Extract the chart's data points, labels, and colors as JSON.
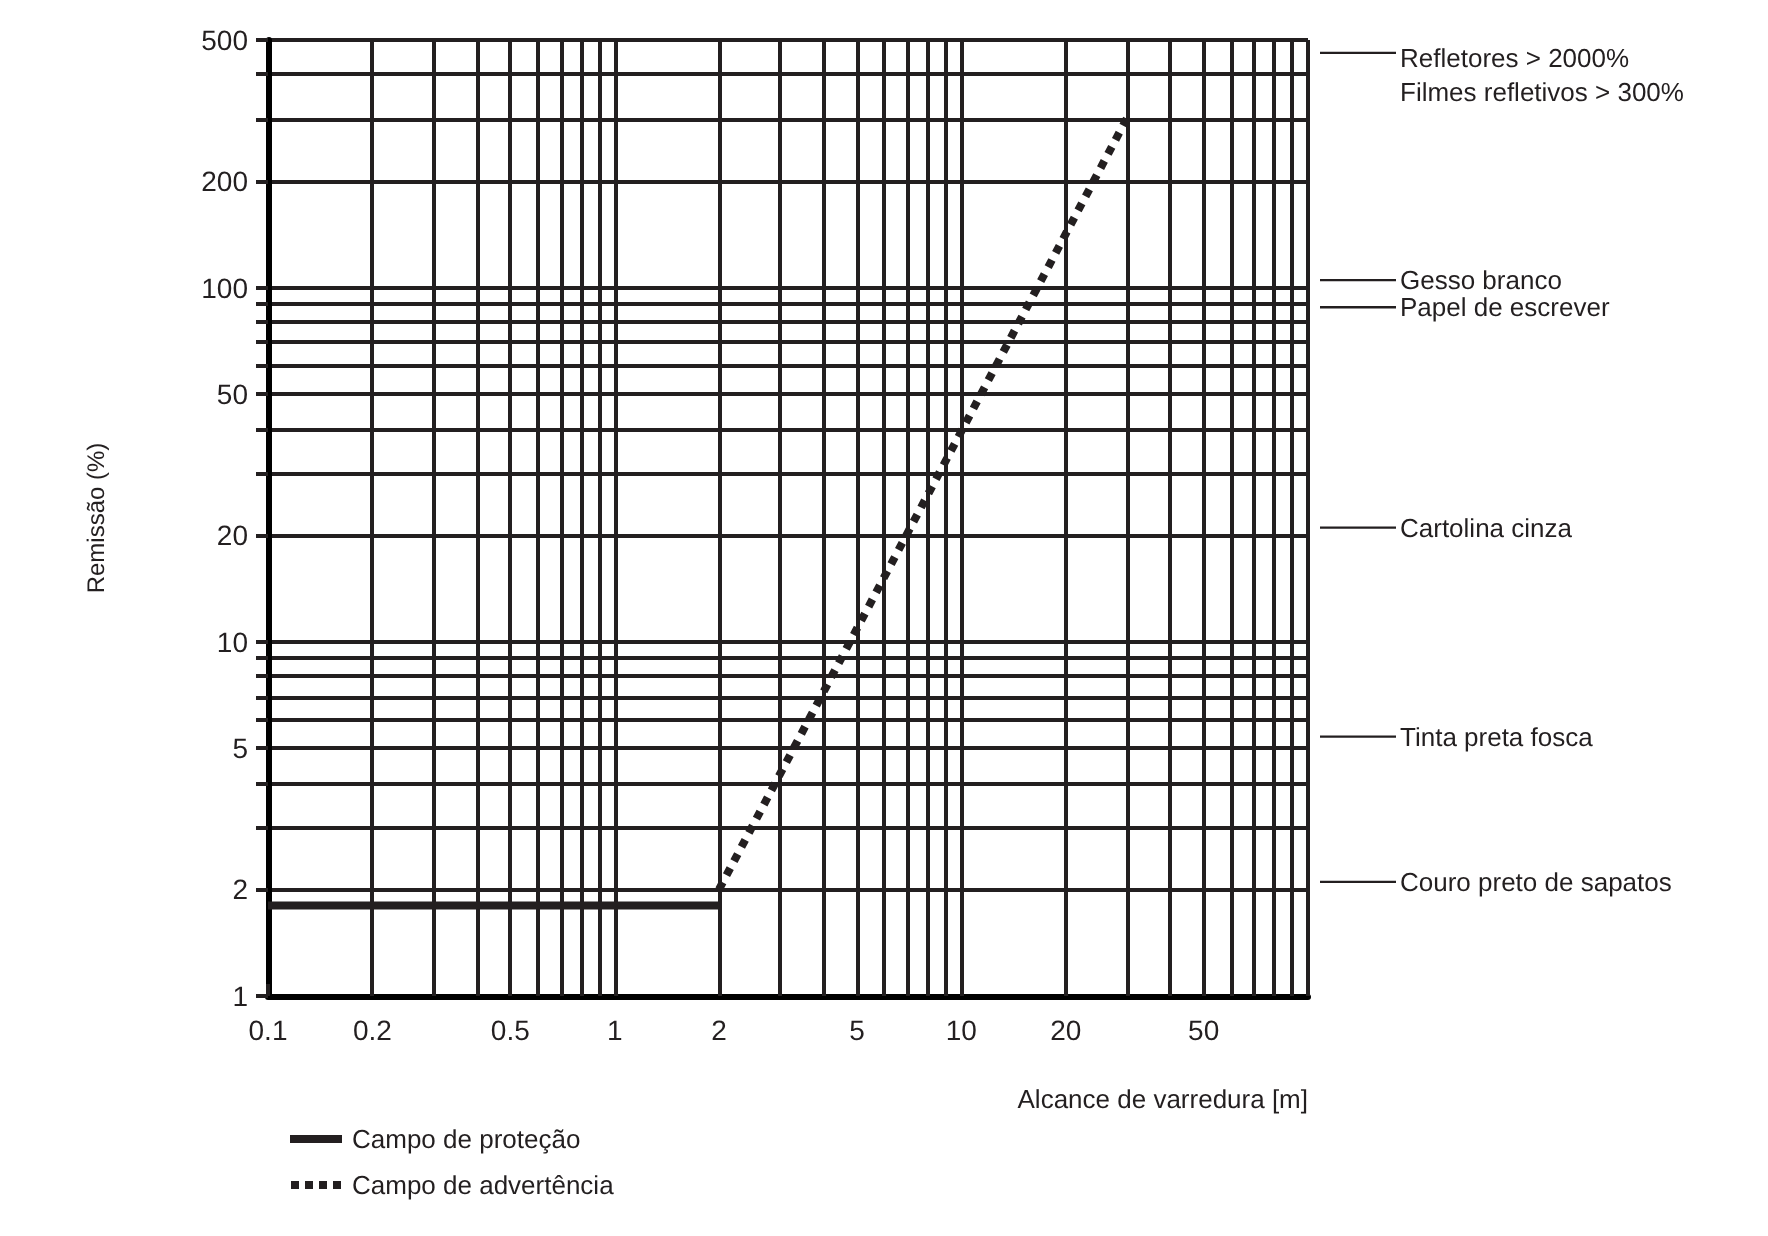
{
  "chart_data": {
    "type": "line",
    "xlabel": "Alcance de varredura [m]",
    "ylabel": "Remissão (%)",
    "log": "xy",
    "grid": true,
    "legend": "bottom left",
    "marker": "none",
    "xlim": [
      0.1,
      100
    ],
    "xticks": [
      0.1,
      0.2,
      {
        "value": 0.3,
        "label": null
      },
      {
        "value": 0.4,
        "label": null
      },
      0.5,
      {
        "value": 0.6,
        "label": null
      },
      {
        "value": 0.7,
        "label": null
      },
      {
        "value": 0.8,
        "label": null
      },
      {
        "value": 0.9,
        "label": null
      },
      1,
      2,
      {
        "value": 3,
        "label": null
      },
      {
        "value": 4,
        "label": null
      },
      5,
      {
        "value": 6,
        "label": null
      },
      {
        "value": 7,
        "label": null
      },
      {
        "value": 8,
        "label": null
      },
      {
        "value": 9,
        "label": null
      },
      10,
      20,
      {
        "value": 30,
        "label": null
      },
      {
        "value": 40,
        "label": null
      },
      50,
      {
        "value": 60,
        "label": null
      },
      {
        "value": 70,
        "label": null
      },
      {
        "value": 80,
        "label": null
      },
      {
        "value": 90,
        "label": null
      },
      {
        "value": 100,
        "label": null
      }
    ],
    "ylim": [
      1,
      500
    ],
    "yticks": [
      1,
      2,
      {
        "value": 3,
        "label": null
      },
      {
        "value": 4,
        "label": null
      },
      5,
      {
        "value": 6,
        "label": null
      },
      {
        "value": 7,
        "label": null
      },
      {
        "value": 8,
        "label": null
      },
      {
        "value": 9,
        "label": null
      },
      10,
      20,
      {
        "value": 30,
        "label": null
      },
      {
        "value": 40,
        "label": null
      },
      50,
      {
        "value": 60,
        "label": null
      },
      {
        "value": 70,
        "label": null
      },
      {
        "value": 80,
        "label": null
      },
      {
        "value": 90,
        "label": null
      },
      100,
      200,
      {
        "value": 300,
        "label": null
      },
      {
        "value": 400,
        "label": null
      },
      500
    ],
    "series": [
      {
        "name": "Campo de proteção",
        "color": "#231f20",
        "line_style": "solid",
        "x": [
          0.1,
          2
        ],
        "values": [
          1.8,
          1.8
        ]
      },
      {
        "name": "Campo de advertência",
        "color": "#231f20",
        "line_style": "dotted",
        "x": [
          2,
          30
        ],
        "values": [
          2,
          300
        ]
      }
    ],
    "ref_lines": [
      {
        "axis": "y",
        "value": 460,
        "label": "Refletores > 2000%\nFilmes refletivos > 300%"
      },
      {
        "axis": "y",
        "value": 105,
        "label": "Gesso branco"
      },
      {
        "axis": "y",
        "value": 88,
        "label": "Papel de escrever"
      },
      {
        "axis": "y",
        "value": 21,
        "label": "Cartolina cinza"
      },
      {
        "axis": "y",
        "value": 5.4,
        "label": "Tinta preta fosca"
      },
      {
        "axis": "y",
        "value": 2.1,
        "label": "Couro preto de sapatos"
      }
    ]
  }
}
